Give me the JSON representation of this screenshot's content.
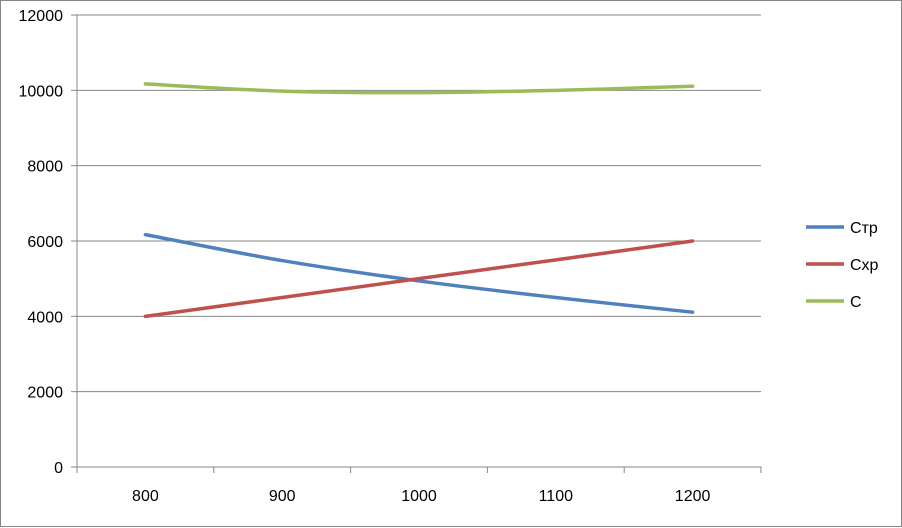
{
  "chart_data": {
    "type": "line",
    "title": "",
    "xlabel": "",
    "ylabel": "",
    "categories": [
      "800",
      "900",
      "1000",
      "1100",
      "1200"
    ],
    "ylim": [
      0,
      12000
    ],
    "y_ticks": [
      "0",
      "2000",
      "4000",
      "6000",
      "8000",
      "10000",
      "12000"
    ],
    "grid": "horizontal",
    "legend_position": "right",
    "series": [
      {
        "name": "Стр",
        "color": "#4F81BD",
        "values": [
          6170,
          5480,
          4940,
          4500,
          4110
        ]
      },
      {
        "name": "Схр",
        "color": "#C0504D",
        "values": [
          4000,
          4500,
          5000,
          5500,
          6000
        ]
      },
      {
        "name": "С",
        "color": "#9BBB59",
        "values": [
          10170,
          9980,
          9940,
          10000,
          10110
        ]
      }
    ]
  }
}
